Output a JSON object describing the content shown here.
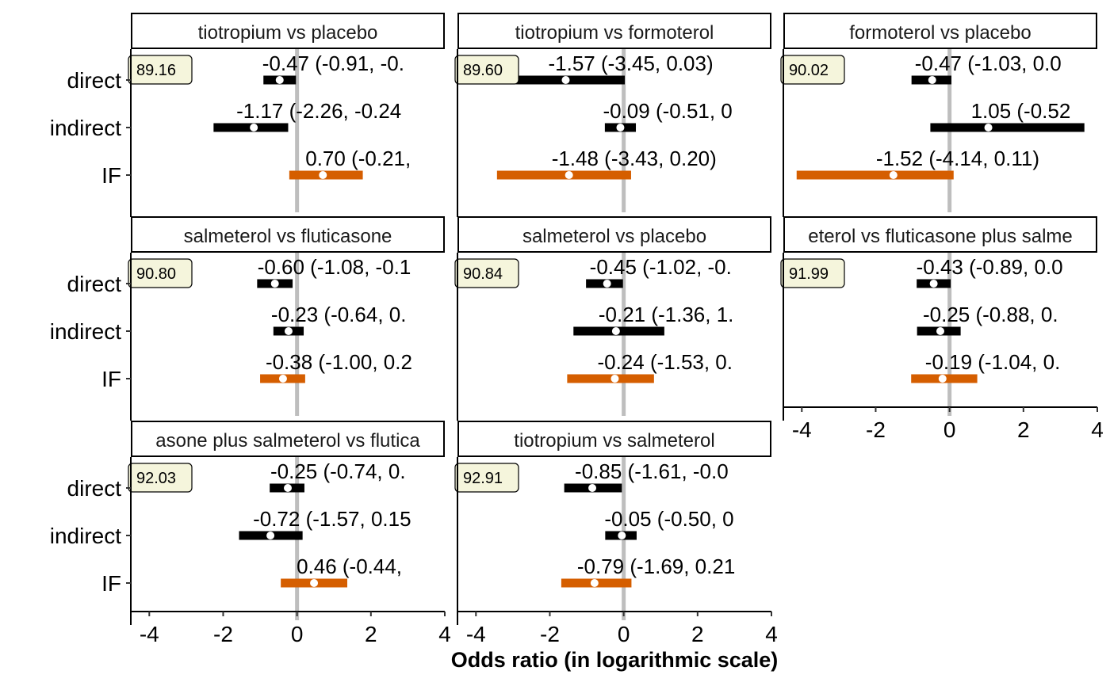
{
  "chart_data": {
    "type": "forest",
    "xlabel": "Odds ratio (in logarithmic scale)",
    "xlim": [
      -4.5,
      4
    ],
    "x_ticks": [
      "-4",
      "-2",
      "0",
      "2",
      "4"
    ],
    "row_labels": [
      "direct",
      "indirect",
      "IF"
    ],
    "colors": {
      "direct": "#000000",
      "indirect": "#000000",
      "IF": "#D55E00",
      "reference_line": "#BEBEBE",
      "badge_fill": "#F5F5DC"
    },
    "panels": [
      {
        "title": "tiotropium vs placebo",
        "badge": "89.16",
        "rows": [
          {
            "label": "-0.47 (-0.91, -0.",
            "est": -0.47,
            "lo": -0.91,
            "hi": -0.03
          },
          {
            "label": "-1.17 (-2.26, -0.24",
            "est": -1.17,
            "lo": -2.26,
            "hi": -0.24
          },
          {
            "label": "0.70 (-0.21,",
            "est": 0.7,
            "lo": -0.21,
            "hi": 1.78
          }
        ]
      },
      {
        "title": "tiotropium vs formoterol",
        "badge": "89.60",
        "rows": [
          {
            "label": "-1.57 (-3.45, 0.03)",
            "est": -1.57,
            "lo": -3.45,
            "hi": 0.03
          },
          {
            "label": "-0.09 (-0.51, 0",
            "est": -0.09,
            "lo": -0.51,
            "hi": 0.33
          },
          {
            "label": "-1.48 (-3.43, 0.20)",
            "est": -1.48,
            "lo": -3.43,
            "hi": 0.2
          }
        ]
      },
      {
        "title": "formoterol vs placebo",
        "badge": "90.02",
        "rows": [
          {
            "label": "-0.47 (-1.03, 0.0",
            "est": -0.47,
            "lo": -1.03,
            "hi": 0.05
          },
          {
            "label": "1.05 (-0.52",
            "est": 1.05,
            "lo": -0.52,
            "hi": 3.65
          },
          {
            "label": "-1.52 (-4.14, 0.11)",
            "est": -1.52,
            "lo": -4.14,
            "hi": 0.11
          }
        ]
      },
      {
        "title": "salmeterol vs fluticasone",
        "badge": "90.80",
        "rows": [
          {
            "label": "-0.60 (-1.08, -0.1",
            "est": -0.6,
            "lo": -1.08,
            "hi": -0.12
          },
          {
            "label": "-0.23 (-0.64, 0.",
            "est": -0.23,
            "lo": -0.64,
            "hi": 0.18
          },
          {
            "label": "-0.38 (-1.00, 0.2",
            "est": -0.38,
            "lo": -1.0,
            "hi": 0.22
          }
        ]
      },
      {
        "title": "salmeterol vs placebo",
        "badge": "90.84",
        "rows": [
          {
            "label": "-0.45 (-1.02, -0.",
            "est": -0.45,
            "lo": -1.02,
            "hi": -0.02
          },
          {
            "label": "-0.21 (-1.36, 1.",
            "est": -0.21,
            "lo": -1.36,
            "hi": 1.1
          },
          {
            "label": "-0.24 (-1.53, 0.",
            "est": -0.24,
            "lo": -1.53,
            "hi": 0.82
          }
        ]
      },
      {
        "title": "eterol vs fluticasone plus salme",
        "badge": "91.99",
        "rows": [
          {
            "label": "-0.43 (-0.89, 0.0",
            "est": -0.43,
            "lo": -0.89,
            "hi": 0.03
          },
          {
            "label": "-0.25 (-0.88, 0.",
            "est": -0.25,
            "lo": -0.88,
            "hi": 0.3
          },
          {
            "label": "-0.19 (-1.04, 0.",
            "est": -0.19,
            "lo": -1.04,
            "hi": 0.75
          }
        ]
      },
      {
        "title": "asone plus salmeterol vs flutica",
        "badge": "92.03",
        "rows": [
          {
            "label": "-0.25 (-0.74, 0.",
            "est": -0.25,
            "lo": -0.74,
            "hi": 0.2
          },
          {
            "label": "-0.72 (-1.57, 0.15",
            "est": -0.72,
            "lo": -1.57,
            "hi": 0.15
          },
          {
            "label": "0.46 (-0.44,",
            "est": 0.46,
            "lo": -0.44,
            "hi": 1.36
          }
        ]
      },
      {
        "title": "tiotropium vs salmeterol",
        "badge": "92.91",
        "rows": [
          {
            "label": "-0.85 (-1.61, -0.0",
            "est": -0.85,
            "lo": -1.61,
            "hi": -0.05
          },
          {
            "label": "-0.05 (-0.50, 0",
            "est": -0.05,
            "lo": -0.5,
            "hi": 0.35
          },
          {
            "label": "-0.79 (-1.69, 0.21",
            "est": -0.79,
            "lo": -1.69,
            "hi": 0.21
          }
        ]
      }
    ]
  }
}
